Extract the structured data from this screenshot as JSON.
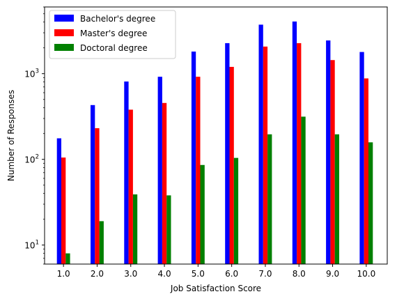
{
  "chart_data": {
    "type": "bar",
    "title": "",
    "xlabel": "Job Satisfaction Score",
    "ylabel": "Number of Responses",
    "y_scale": "log",
    "ylim": [
      6,
      6000
    ],
    "categories": [
      "1.0",
      "2.0",
      "3.0",
      "4.0",
      "5.0",
      "6.0",
      "7.0",
      "8.0",
      "9.0",
      "10.0"
    ],
    "y_ticks": [
      {
        "value": 10,
        "base": "10",
        "exp": "1"
      },
      {
        "value": 100,
        "base": "10",
        "exp": "2"
      },
      {
        "value": 1000,
        "base": "10",
        "exp": "3"
      }
    ],
    "legend_position": "top-left",
    "grid": false,
    "series": [
      {
        "name": "Bachelor's degree",
        "color": "#0000ff",
        "values": [
          176,
          430,
          810,
          920,
          1810,
          2270,
          3730,
          4060,
          2440,
          1790
        ]
      },
      {
        "name": "Master's degree",
        "color": "#ff0000",
        "values": [
          105,
          231,
          380,
          455,
          920,
          1200,
          2070,
          2270,
          1440,
          880
        ]
      },
      {
        "name": "Doctoral degree",
        "color": "#008000",
        "values": [
          8,
          19,
          39,
          38,
          86,
          104,
          196,
          315,
          196,
          158
        ]
      }
    ]
  }
}
